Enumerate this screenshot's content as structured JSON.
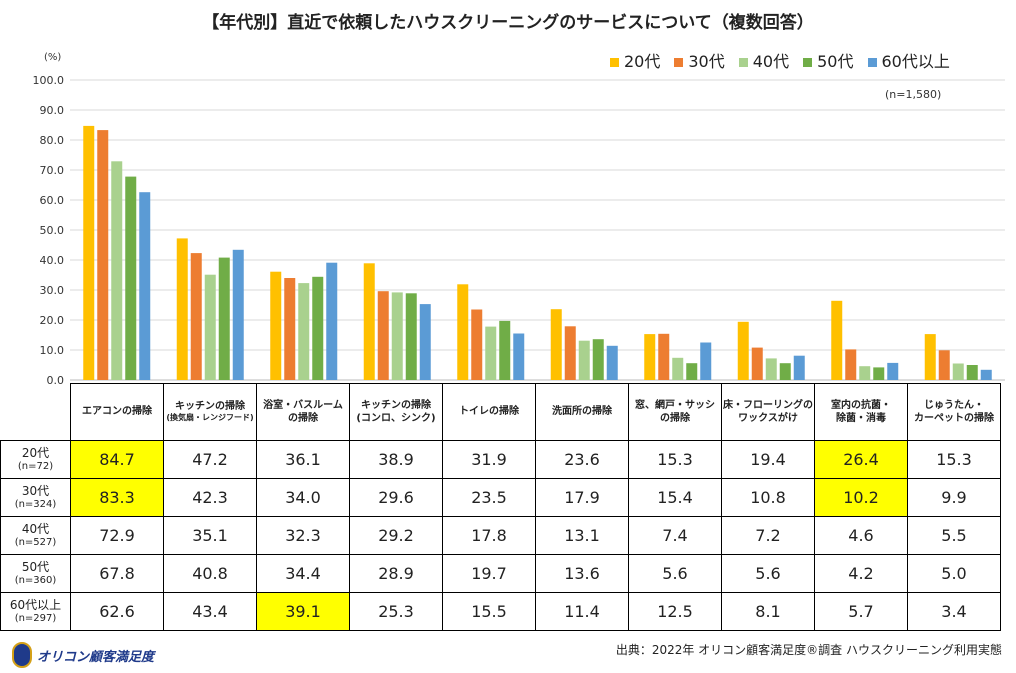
{
  "chart_data": {
    "type": "bar",
    "title": "【年代別】直近で依頼したハウスクリーニングのサービスについて（複数回答）",
    "unit": "(%)",
    "note": "(n=1,580)",
    "ylim": [
      0,
      100
    ],
    "yticks": [
      "0.0",
      "10.0",
      "20.0",
      "30.0",
      "40.0",
      "50.0",
      "60.0",
      "70.0",
      "80.0",
      "90.0",
      "100.0"
    ],
    "grid": true,
    "legend_placement": "top-right",
    "categories": [
      {
        "line1": "エアコンの掃除",
        "line2": ""
      },
      {
        "line1": "キッチンの掃除",
        "line2": "(換気扇・レンジフード)",
        "small": true
      },
      {
        "line1": "浴室・バスルーム",
        "line2": "の掃除"
      },
      {
        "line1": "キッチンの掃除",
        "line2": "(コンロ、シンク)"
      },
      {
        "line1": "トイレの掃除",
        "line2": ""
      },
      {
        "line1": "洗面所の掃除",
        "line2": ""
      },
      {
        "line1": "窓、網戸・サッシ",
        "line2": "の掃除"
      },
      {
        "line1": "床・フローリングの",
        "line2": "ワックスがけ"
      },
      {
        "line1": "室内の抗菌・",
        "line2": "除菌・消毒"
      },
      {
        "line1": "じゅうたん・",
        "line2": "カーペットの掃除"
      }
    ],
    "series": [
      {
        "name": "20代",
        "n": "(n=72)",
        "color": "#FFC000",
        "values": [
          84.7,
          47.2,
          36.1,
          38.9,
          31.9,
          23.6,
          15.3,
          19.4,
          26.4,
          15.3
        ],
        "highlight": [
          0,
          8
        ]
      },
      {
        "name": "30代",
        "n": "(n=324)",
        "color": "#ED7D31",
        "values": [
          83.3,
          42.3,
          34.0,
          29.6,
          23.5,
          17.9,
          15.4,
          10.8,
          10.2,
          9.9
        ],
        "highlight": [
          0,
          8
        ]
      },
      {
        "name": "40代",
        "n": "(n=527)",
        "color": "#A9D18E",
        "values": [
          72.9,
          35.1,
          32.3,
          29.2,
          17.8,
          13.1,
          7.4,
          7.2,
          4.6,
          5.5
        ],
        "highlight": []
      },
      {
        "name": "50代",
        "n": "(n=360)",
        "color": "#70AD47",
        "values": [
          67.8,
          40.8,
          34.4,
          28.9,
          19.7,
          13.6,
          5.6,
          5.6,
          4.2,
          5.0
        ],
        "highlight": []
      },
      {
        "name": "60代以上",
        "n": "(n=297)",
        "color": "#5B9BD5",
        "values": [
          62.6,
          43.4,
          39.1,
          25.3,
          15.5,
          11.4,
          12.5,
          8.1,
          5.7,
          3.4
        ],
        "highlight": [
          2
        ]
      }
    ]
  },
  "footer": {
    "source": "出典：2022年 オリコン顧客満足度®調査 ハウスクリーニング利用実態",
    "logo_text": "オリコン顧客満足度"
  }
}
